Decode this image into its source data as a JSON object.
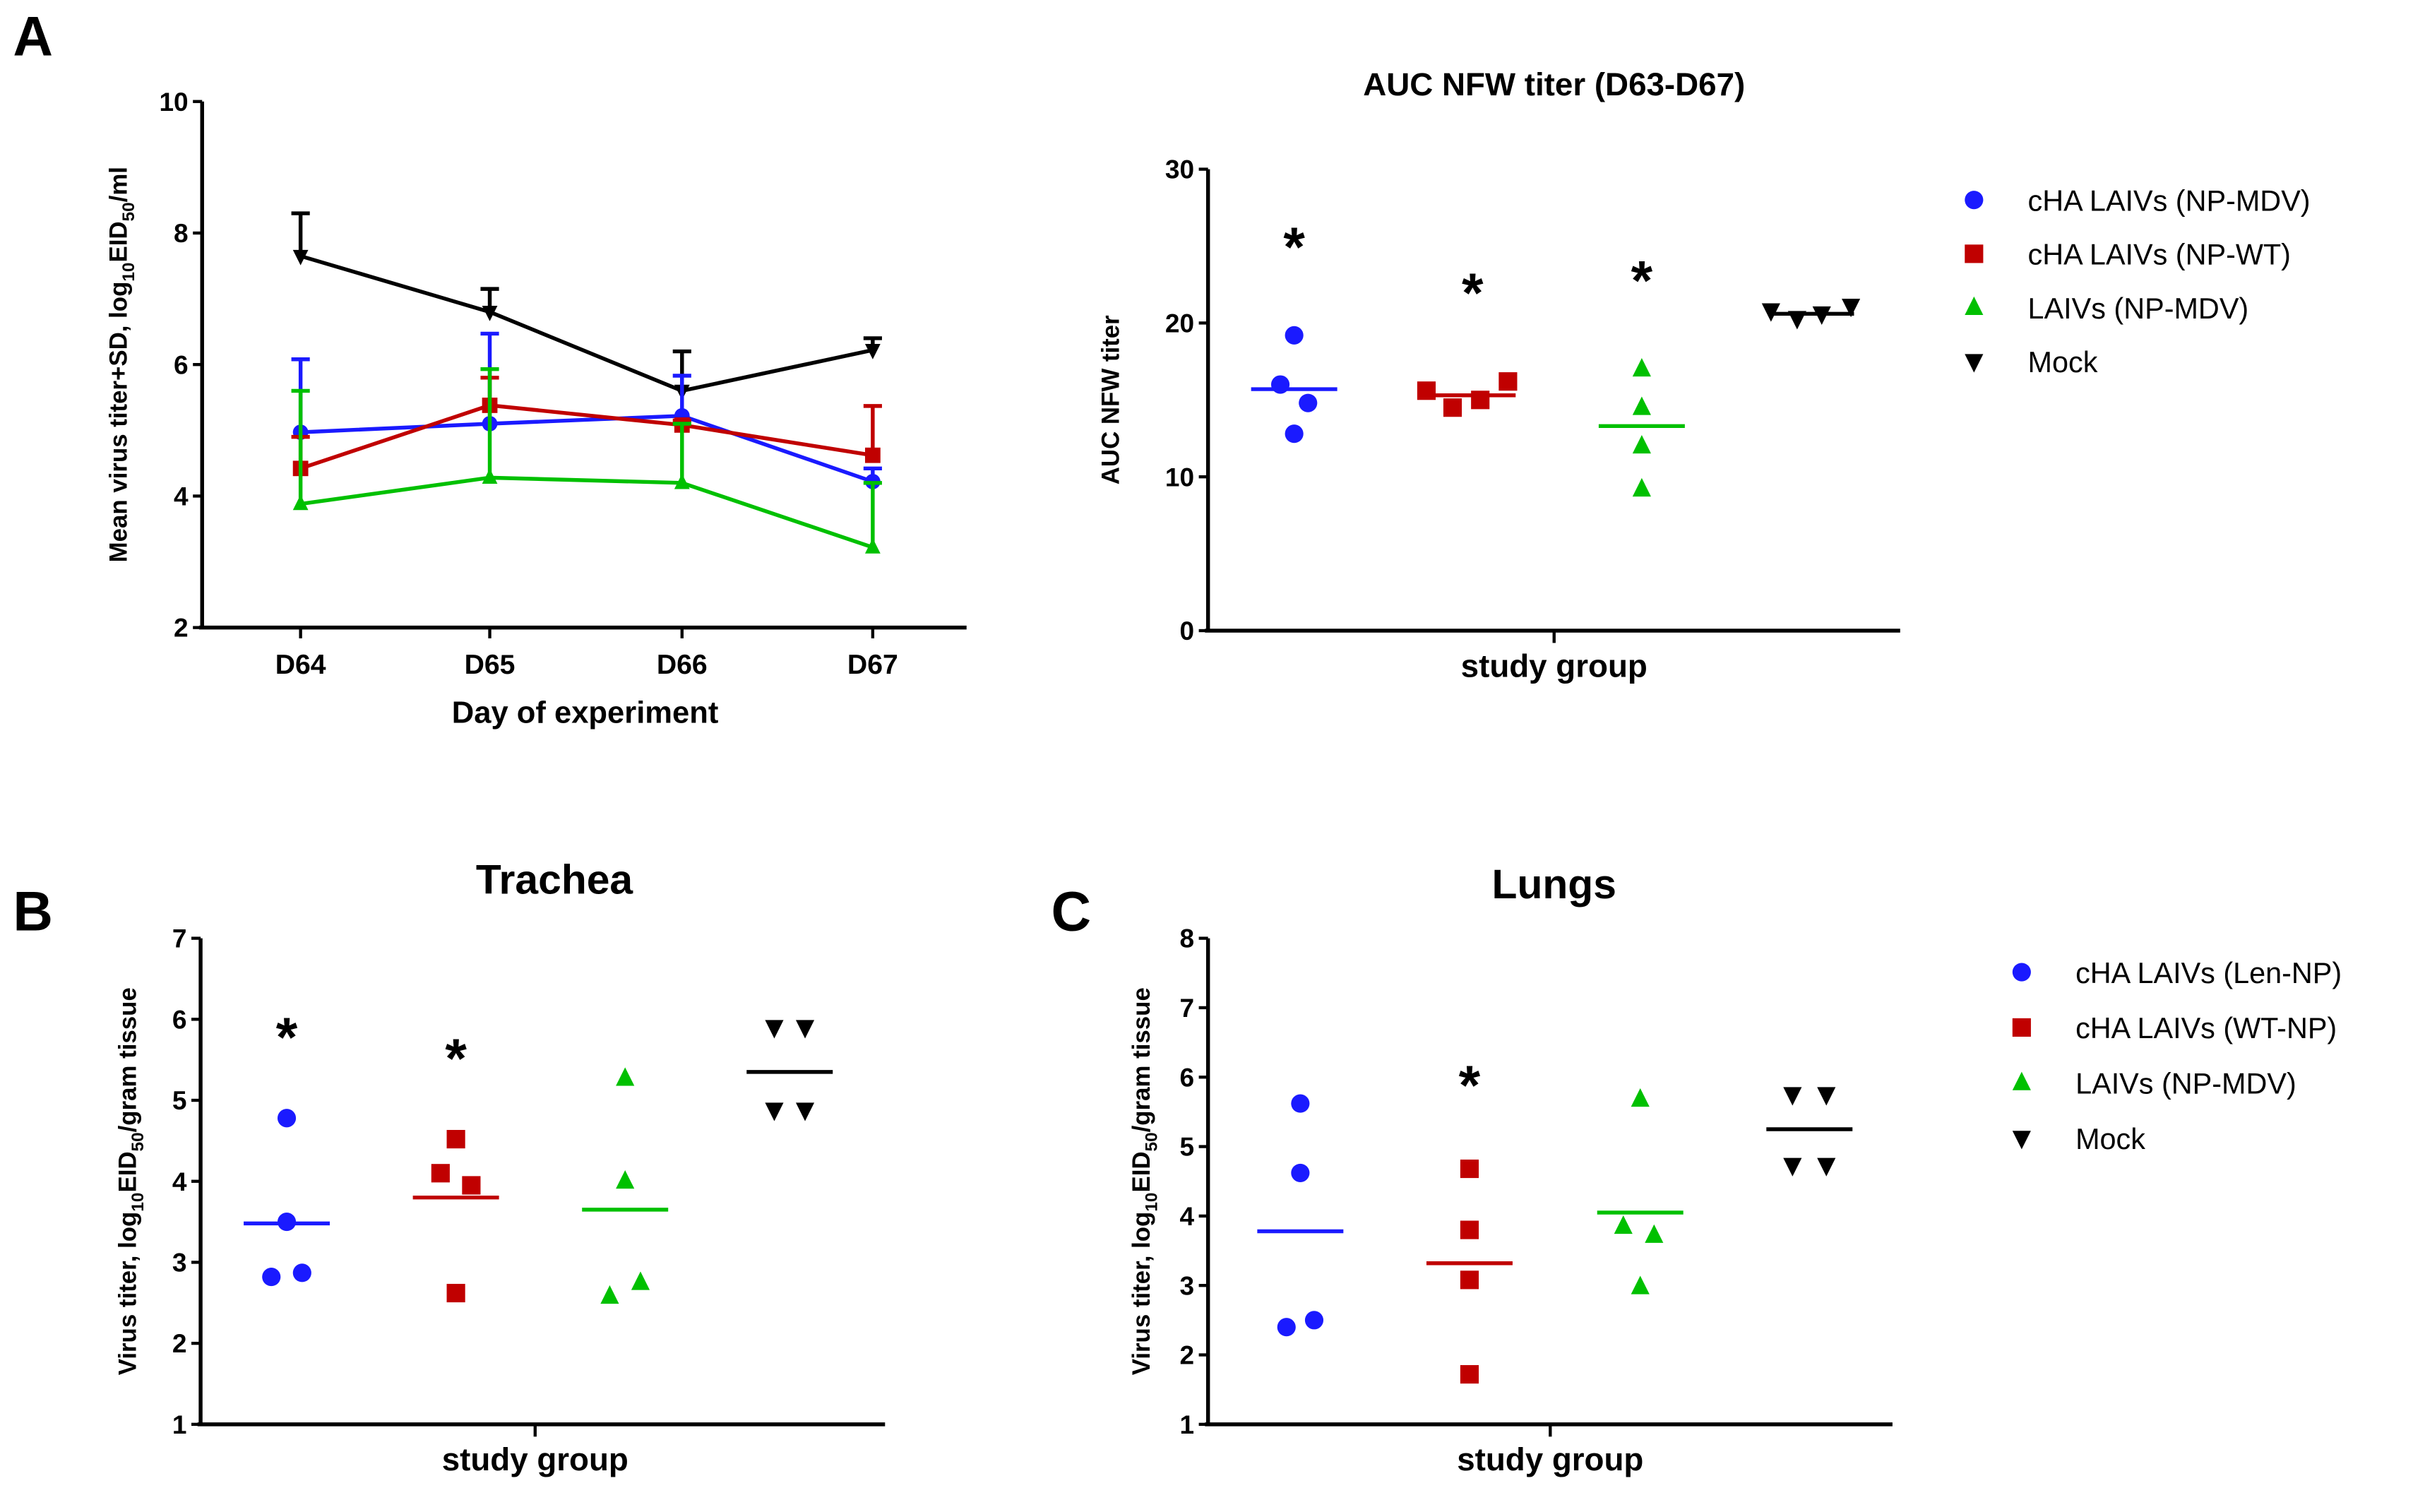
{
  "colors": {
    "blue": "#1a1aff",
    "red": "#c00000",
    "green": "#00c000",
    "black": "#000000"
  },
  "chart_data": [
    {
      "panel_label": "A",
      "type": "line",
      "title": "",
      "xlabel": "Day of experiment",
      "ylabel_main": "Mean virus titer+SD, log",
      "ylabel_sub": "10",
      "ylabel_mid": "EID",
      "ylabel_sub2": "50",
      "ylabel_end": "/ml",
      "categories": [
        "D64",
        "D65",
        "D66",
        "D67"
      ],
      "ylim": [
        2,
        10
      ],
      "yticks": [
        "2",
        "4",
        "6",
        "8",
        "10"
      ],
      "series": [
        {
          "name": "Mock",
          "color": "black",
          "marker": "tri-down",
          "values": [
            7.65,
            6.8,
            5.6,
            6.22
          ],
          "sd_top": [
            8.3,
            7.15,
            6.2,
            6.4
          ]
        },
        {
          "name": "cHA LAIVs (NP-MDV)",
          "color": "blue",
          "marker": "circle",
          "values": [
            4.97,
            5.1,
            5.22,
            4.22
          ],
          "sd_top": [
            6.08,
            6.47,
            5.83,
            4.42
          ]
        },
        {
          "name": "cHA LAIVs (NP-WT)",
          "color": "red",
          "marker": "square",
          "values": [
            4.42,
            5.38,
            5.08,
            4.62
          ],
          "sd_top": [
            4.9,
            5.8,
            5.15,
            5.37
          ]
        },
        {
          "name": "LAIVs (NP-MDV)",
          "color": "green",
          "marker": "tri-up",
          "values": [
            3.88,
            4.28,
            4.2,
            3.22
          ],
          "sd_top": [
            5.6,
            5.93,
            5.1,
            4.2
          ]
        }
      ]
    },
    {
      "panel_label": "",
      "type": "scatter",
      "title": "AUC NFW titer (D63-D67)",
      "xlabel": "study group",
      "ylabel_main": "AUC NFW titer",
      "ylim": [
        0,
        30
      ],
      "yticks": [
        "0",
        "10",
        "20",
        "30"
      ],
      "groups": [
        {
          "name": "cHA LAIVs (NP-MDV)",
          "color": "blue",
          "marker": "circle",
          "values": [
            19.2,
            16.0,
            14.8,
            12.8
          ],
          "mean": 15.7,
          "significant": true
        },
        {
          "name": "cHA LAIVs (NP-WT)",
          "color": "red",
          "marker": "square",
          "values": [
            15.6,
            14.5,
            15.0,
            16.2
          ],
          "mean": 15.3,
          "significant": true
        },
        {
          "name": "LAIVs (NP-MDV)",
          "color": "green",
          "marker": "tri-up",
          "values": [
            17.0,
            14.5,
            12.0,
            9.2
          ],
          "mean": 13.3,
          "significant": true
        },
        {
          "name": "Mock",
          "color": "black",
          "marker": "tri-down",
          "values": [
            20.8,
            20.3,
            20.6,
            21.1
          ],
          "mean": 20.6,
          "significant": false
        }
      ],
      "significance_mark": "*",
      "legend": "right"
    },
    {
      "panel_label": "B",
      "type": "scatter",
      "title": "Trachea",
      "xlabel": "study group",
      "ylabel_main": "Virus titer, log",
      "ylabel_sub": "10",
      "ylabel_mid": "EID",
      "ylabel_sub2": "50",
      "ylabel_end": "/gram tissue",
      "ylim": [
        1,
        7
      ],
      "yticks": [
        "1",
        "2",
        "3",
        "4",
        "5",
        "6",
        "7"
      ],
      "groups": [
        {
          "name": "cHA LAIVs (Len-NP)",
          "color": "blue",
          "marker": "circle",
          "values": [
            4.78,
            3.5,
            2.82,
            2.87
          ],
          "mean": 3.48,
          "significant": true
        },
        {
          "name": "cHA LAIVs (WT-NP)",
          "color": "red",
          "marker": "square",
          "values": [
            4.52,
            4.1,
            3.95,
            2.62
          ],
          "mean": 3.8,
          "significant": true
        },
        {
          "name": "LAIVs (NP-MDV)",
          "color": "green",
          "marker": "tri-up",
          "values": [
            5.27,
            4.0,
            2.75,
            2.58
          ],
          "mean": 3.65,
          "significant": false
        },
        {
          "name": "Mock",
          "color": "black",
          "marker": "tri-down",
          "values": [
            5.9,
            5.9,
            4.88,
            4.88
          ],
          "mean": 5.35,
          "significant": false
        }
      ],
      "significance_mark": "*"
    },
    {
      "panel_label": "C",
      "type": "scatter",
      "title": "Lungs",
      "xlabel": "study group",
      "ylabel_main": "Virus titer, log",
      "ylabel_sub": "10",
      "ylabel_mid": "EID",
      "ylabel_sub2": "50",
      "ylabel_end": "/gram tissue",
      "ylim": [
        1,
        8
      ],
      "yticks": [
        "1",
        "2",
        "3",
        "4",
        "5",
        "6",
        "7",
        "8"
      ],
      "groups": [
        {
          "name": "cHA LAIVs (Len-NP)",
          "color": "blue",
          "marker": "circle",
          "values": [
            5.62,
            4.62,
            2.5,
            2.4
          ],
          "mean": 3.78,
          "significant": false
        },
        {
          "name": "cHA LAIVs (WT-NP)",
          "color": "red",
          "marker": "square",
          "values": [
            4.68,
            3.8,
            3.08,
            1.72
          ],
          "mean": 3.32,
          "significant": true
        },
        {
          "name": "LAIVs (NP-MDV)",
          "color": "green",
          "marker": "tri-up",
          "values": [
            5.68,
            3.85,
            3.72,
            2.98
          ],
          "mean": 4.05,
          "significant": false
        },
        {
          "name": "Mock",
          "color": "black",
          "marker": "tri-down",
          "values": [
            5.75,
            5.75,
            4.73,
            4.73
          ],
          "mean": 5.25,
          "significant": false
        }
      ],
      "significance_mark": "*",
      "legend": "right"
    }
  ]
}
